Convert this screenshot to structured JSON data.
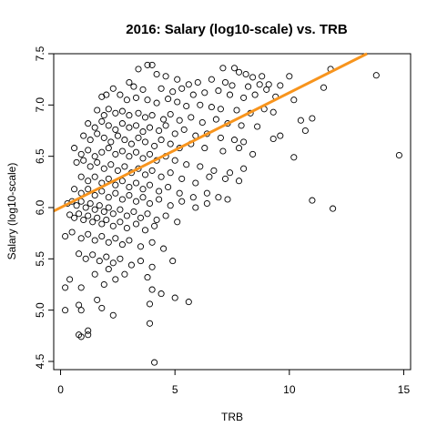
{
  "chart_data": {
    "type": "scatter",
    "title": "2016: Salary (log10-scale) vs. TRB",
    "xlabel": "TRB",
    "ylabel": "Salary (log10-scale)",
    "xlim": [
      -0.3,
      15.3
    ],
    "ylim": [
      4.42,
      7.5
    ],
    "x_ticks": [
      0,
      5,
      10,
      15
    ],
    "y_ticks": [
      4.5,
      5.0,
      5.5,
      6.0,
      6.5,
      7.0,
      7.5
    ],
    "fit_line": {
      "color": "#f7941d",
      "intercept": 6.0,
      "slope": 0.112
    },
    "point_color": "#000000",
    "points": [
      [
        3.8,
        7.39
      ],
      [
        4.0,
        7.39
      ],
      [
        3.4,
        7.35
      ],
      [
        7.1,
        7.36
      ],
      [
        7.6,
        7.36
      ],
      [
        7.8,
        7.32
      ],
      [
        8.1,
        7.3
      ],
      [
        8.4,
        7.27
      ],
      [
        8.8,
        7.28
      ],
      [
        10.0,
        7.28
      ],
      [
        11.8,
        7.35
      ],
      [
        13.8,
        7.29
      ],
      [
        4.2,
        7.3
      ],
      [
        4.6,
        7.28
      ],
      [
        5.1,
        7.25
      ],
      [
        5.6,
        7.2
      ],
      [
        6.0,
        7.22
      ],
      [
        6.6,
        7.25
      ],
      [
        7.2,
        7.22
      ],
      [
        7.5,
        7.19
      ],
      [
        8.2,
        7.18
      ],
      [
        8.7,
        7.2
      ],
      [
        9.1,
        7.2
      ],
      [
        9.6,
        7.19
      ],
      [
        3.0,
        7.22
      ],
      [
        3.2,
        7.18
      ],
      [
        3.6,
        7.15
      ],
      [
        4.4,
        7.16
      ],
      [
        4.9,
        7.13
      ],
      [
        5.3,
        7.16
      ],
      [
        5.8,
        7.1
      ],
      [
        6.3,
        7.12
      ],
      [
        6.9,
        7.14
      ],
      [
        7.4,
        7.1
      ],
      [
        8.0,
        7.07
      ],
      [
        8.5,
        7.1
      ],
      [
        9.0,
        7.15
      ],
      [
        9.4,
        7.08
      ],
      [
        10.2,
        7.05
      ],
      [
        11.5,
        7.17
      ],
      [
        1.8,
        7.08
      ],
      [
        2.0,
        7.1
      ],
      [
        2.3,
        7.16
      ],
      [
        2.6,
        7.1
      ],
      [
        2.9,
        7.05
      ],
      [
        3.3,
        7.07
      ],
      [
        3.8,
        7.05
      ],
      [
        4.2,
        7.02
      ],
      [
        4.7,
        7.06
      ],
      [
        5.1,
        7.03
      ],
      [
        5.5,
        6.99
      ],
      [
        6.1,
        7.0
      ],
      [
        6.6,
        6.98
      ],
      [
        7.0,
        6.96
      ],
      [
        7.7,
        6.95
      ],
      [
        8.3,
        6.92
      ],
      [
        8.9,
        6.96
      ],
      [
        9.3,
        6.93
      ],
      [
        10.5,
        6.85
      ],
      [
        11.0,
        6.87
      ],
      [
        1.6,
        6.95
      ],
      [
        1.9,
        6.9
      ],
      [
        2.1,
        6.96
      ],
      [
        2.4,
        6.92
      ],
      [
        2.7,
        6.94
      ],
      [
        3.0,
        6.9
      ],
      [
        3.4,
        6.92
      ],
      [
        3.7,
        6.88
      ],
      [
        4.0,
        6.9
      ],
      [
        4.5,
        6.86
      ],
      [
        4.8,
        6.91
      ],
      [
        5.2,
        6.85
      ],
      [
        5.7,
        6.88
      ],
      [
        6.2,
        6.83
      ],
      [
        6.8,
        6.86
      ],
      [
        7.3,
        6.82
      ],
      [
        7.9,
        6.8
      ],
      [
        8.6,
        6.79
      ],
      [
        10.7,
        6.75
      ],
      [
        1.2,
        6.82
      ],
      [
        1.5,
        6.78
      ],
      [
        1.8,
        6.84
      ],
      [
        2.1,
        6.8
      ],
      [
        2.4,
        6.76
      ],
      [
        2.7,
        6.82
      ],
      [
        3.0,
        6.78
      ],
      [
        3.3,
        6.8
      ],
      [
        3.6,
        6.74
      ],
      [
        3.9,
        6.78
      ],
      [
        4.3,
        6.75
      ],
      [
        4.6,
        6.8
      ],
      [
        5.0,
        6.72
      ],
      [
        5.4,
        6.76
      ],
      [
        5.9,
        6.7
      ],
      [
        6.4,
        6.72
      ],
      [
        7.0,
        6.68
      ],
      [
        7.6,
        6.66
      ],
      [
        8.0,
        6.64
      ],
      [
        9.3,
        6.67
      ],
      [
        9.6,
        6.7
      ],
      [
        1.0,
        6.7
      ],
      [
        1.3,
        6.66
      ],
      [
        1.6,
        6.72
      ],
      [
        1.9,
        6.68
      ],
      [
        2.2,
        6.64
      ],
      [
        2.5,
        6.7
      ],
      [
        2.8,
        6.66
      ],
      [
        3.1,
        6.62
      ],
      [
        3.4,
        6.68
      ],
      [
        3.7,
        6.64
      ],
      [
        4.1,
        6.6
      ],
      [
        4.4,
        6.66
      ],
      [
        4.8,
        6.62
      ],
      [
        5.2,
        6.58
      ],
      [
        5.7,
        6.62
      ],
      [
        6.3,
        6.58
      ],
      [
        7.1,
        6.55
      ],
      [
        7.8,
        6.58
      ],
      [
        8.4,
        6.52
      ],
      [
        10.2,
        6.49
      ],
      [
        0.6,
        6.58
      ],
      [
        0.9,
        6.52
      ],
      [
        1.2,
        6.56
      ],
      [
        1.5,
        6.5
      ],
      [
        1.8,
        6.54
      ],
      [
        2.1,
        6.58
      ],
      [
        2.4,
        6.52
      ],
      [
        2.7,
        6.55
      ],
      [
        3.0,
        6.5
      ],
      [
        3.3,
        6.54
      ],
      [
        3.6,
        6.48
      ],
      [
        3.9,
        6.52
      ],
      [
        4.2,
        6.46
      ],
      [
        4.6,
        6.5
      ],
      [
        5.0,
        6.46
      ],
      [
        5.5,
        6.42
      ],
      [
        6.1,
        6.4
      ],
      [
        6.7,
        6.36
      ],
      [
        7.4,
        6.34
      ],
      [
        8.0,
        6.38
      ],
      [
        14.8,
        6.51
      ],
      [
        0.7,
        6.44
      ],
      [
        1.0,
        6.46
      ],
      [
        1.3,
        6.4
      ],
      [
        1.6,
        6.44
      ],
      [
        1.9,
        6.38
      ],
      [
        2.2,
        6.42
      ],
      [
        2.5,
        6.36
      ],
      [
        2.8,
        6.4
      ],
      [
        3.1,
        6.34
      ],
      [
        3.4,
        6.38
      ],
      [
        3.7,
        6.32
      ],
      [
        4.0,
        6.36
      ],
      [
        4.4,
        6.3
      ],
      [
        4.8,
        6.34
      ],
      [
        5.3,
        6.28
      ],
      [
        5.9,
        6.24
      ],
      [
        6.5,
        6.3
      ],
      [
        7.2,
        6.28
      ],
      [
        7.8,
        6.26
      ],
      [
        0.9,
        6.3
      ],
      [
        1.2,
        6.26
      ],
      [
        1.5,
        6.3
      ],
      [
        1.8,
        6.24
      ],
      [
        2.1,
        6.28
      ],
      [
        2.4,
        6.22
      ],
      [
        2.7,
        6.26
      ],
      [
        3.0,
        6.2
      ],
      [
        3.3,
        6.24
      ],
      [
        3.6,
        6.18
      ],
      [
        3.9,
        6.22
      ],
      [
        4.3,
        6.16
      ],
      [
        4.7,
        6.2
      ],
      [
        5.2,
        6.14
      ],
      [
        5.8,
        6.1
      ],
      [
        6.4,
        6.14
      ],
      [
        6.9,
        6.1
      ],
      [
        7.3,
        6.08
      ],
      [
        0.6,
        6.18
      ],
      [
        0.9,
        6.14
      ],
      [
        1.2,
        6.18
      ],
      [
        1.5,
        6.12
      ],
      [
        1.8,
        6.16
      ],
      [
        2.1,
        6.1
      ],
      [
        2.4,
        6.14
      ],
      [
        2.7,
        6.08
      ],
      [
        3.0,
        6.12
      ],
      [
        3.3,
        6.06
      ],
      [
        3.6,
        6.1
      ],
      [
        3.9,
        6.04
      ],
      [
        4.3,
        6.08
      ],
      [
        4.8,
        6.02
      ],
      [
        5.3,
        6.06
      ],
      [
        5.9,
        6.0
      ],
      [
        6.4,
        6.04
      ],
      [
        11.0,
        6.07
      ],
      [
        11.9,
        5.99
      ],
      [
        0.3,
        6.04
      ],
      [
        0.5,
        6.06
      ],
      [
        0.7,
        6.02
      ],
      [
        0.9,
        6.06
      ],
      [
        1.1,
        6.0
      ],
      [
        1.3,
        6.04
      ],
      [
        1.5,
        5.98
      ],
      [
        1.7,
        6.02
      ],
      [
        1.9,
        5.96
      ],
      [
        2.1,
        6.0
      ],
      [
        2.3,
        5.94
      ],
      [
        2.6,
        5.98
      ],
      [
        2.9,
        5.92
      ],
      [
        3.2,
        5.96
      ],
      [
        3.5,
        5.9
      ],
      [
        3.8,
        5.94
      ],
      [
        4.2,
        5.88
      ],
      [
        4.6,
        5.92
      ],
      [
        5.1,
        5.86
      ],
      [
        0.4,
        5.93
      ],
      [
        0.6,
        5.9
      ],
      [
        0.8,
        5.94
      ],
      [
        1.0,
        5.88
      ],
      [
        1.2,
        5.92
      ],
      [
        1.4,
        5.86
      ],
      [
        1.6,
        5.9
      ],
      [
        1.8,
        5.84
      ],
      [
        2.0,
        5.88
      ],
      [
        2.3,
        5.82
      ],
      [
        2.6,
        5.86
      ],
      [
        2.9,
        5.8
      ],
      [
        3.3,
        5.84
      ],
      [
        3.7,
        5.78
      ],
      [
        4.1,
        5.82
      ],
      [
        0.2,
        5.72
      ],
      [
        0.5,
        5.76
      ],
      [
        0.9,
        5.7
      ],
      [
        1.2,
        5.74
      ],
      [
        1.5,
        5.68
      ],
      [
        1.8,
        5.72
      ],
      [
        2.1,
        5.66
      ],
      [
        2.4,
        5.7
      ],
      [
        2.7,
        5.64
      ],
      [
        3.0,
        5.68
      ],
      [
        3.5,
        5.62
      ],
      [
        4.0,
        5.66
      ],
      [
        4.5,
        5.6
      ],
      [
        0.8,
        5.55
      ],
      [
        1.1,
        5.5
      ],
      [
        1.4,
        5.54
      ],
      [
        1.7,
        5.48
      ],
      [
        2.0,
        5.52
      ],
      [
        2.3,
        5.46
      ],
      [
        2.6,
        5.5
      ],
      [
        3.1,
        5.44
      ],
      [
        3.5,
        5.48
      ],
      [
        4.0,
        5.42
      ],
      [
        4.9,
        5.48
      ],
      [
        0.4,
        5.3
      ],
      [
        0.2,
        5.22
      ],
      [
        1.5,
        5.35
      ],
      [
        2.1,
        5.4
      ],
      [
        2.4,
        5.3
      ],
      [
        2.8,
        5.35
      ],
      [
        3.8,
        5.32
      ],
      [
        1.9,
        5.25
      ],
      [
        0.9,
        5.22
      ],
      [
        4.0,
        5.2
      ],
      [
        4.4,
        5.16
      ],
      [
        5.0,
        5.12
      ],
      [
        5.6,
        5.08
      ],
      [
        1.6,
        5.1
      ],
      [
        1.8,
        5.02
      ],
      [
        0.8,
        5.05
      ],
      [
        0.9,
        5.0
      ],
      [
        0.2,
        5.0
      ],
      [
        2.3,
        4.95
      ],
      [
        3.9,
        5.06
      ],
      [
        3.9,
        4.87
      ],
      [
        1.2,
        4.8
      ],
      [
        0.8,
        4.76
      ],
      [
        0.9,
        4.74
      ],
      [
        1.2,
        4.76
      ],
      [
        4.1,
        4.49
      ]
    ]
  }
}
